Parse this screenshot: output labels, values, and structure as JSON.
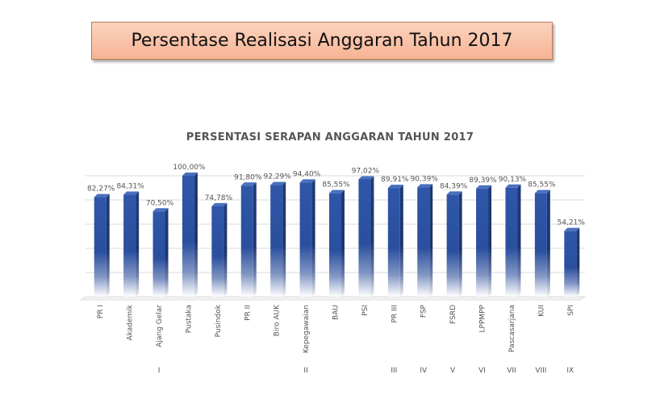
{
  "slide": {
    "title": "Persentase Realisasi Anggaran Tahun 2017",
    "colors": {
      "title_fill": "#f8bfa2",
      "bar": "#2f56a8",
      "bar_side": "#1d3a78"
    }
  },
  "chart_data": {
    "type": "bar",
    "title": "PERSENTASI SERAPAN ANGGARAN TAHUN 2017",
    "xlabel": "",
    "ylabel": "",
    "ylim": [
      0,
      100
    ],
    "grid": true,
    "categories": [
      "PR I",
      "Akademik",
      "Ajang Gelar",
      "Pustaka",
      "Pusindok",
      "PR II",
      "Biro AUK",
      "Kepegawaian",
      "BAU",
      "PSI",
      "PR III",
      "FSP",
      "FSRD",
      "LPPMPP",
      "Pascasarjana",
      "KUI",
      "SPI"
    ],
    "values": [
      82.27,
      84.31,
      70.5,
      100.0,
      74.78,
      91.8,
      92.29,
      94.4,
      85.55,
      97.02,
      89.91,
      90.39,
      84.39,
      89.39,
      90.13,
      85.55,
      54.21
    ],
    "data_labels": [
      "82,27%",
      "84,31%",
      "70,50%",
      "100,00%",
      "74,78%",
      "91,80%",
      "92,29%",
      "94,40%",
      "85,55%",
      "97,02%",
      "89,91%",
      "90,39%",
      "84,39%",
      "89,39%",
      "90,13%",
      "85,55%",
      "54,21%"
    ],
    "groups": [
      {
        "label": "I",
        "from": 0,
        "to": 4
      },
      {
        "label": "II",
        "from": 5,
        "to": 9
      },
      {
        "label": "III",
        "from": 10,
        "to": 10
      },
      {
        "label": "IV",
        "from": 11,
        "to": 11
      },
      {
        "label": "V",
        "from": 12,
        "to": 12
      },
      {
        "label": "VI",
        "from": 13,
        "to": 13
      },
      {
        "label": "VII",
        "from": 14,
        "to": 14
      },
      {
        "label": "VIII",
        "from": 15,
        "to": 15
      },
      {
        "label": "IX",
        "from": 16,
        "to": 16
      }
    ]
  }
}
